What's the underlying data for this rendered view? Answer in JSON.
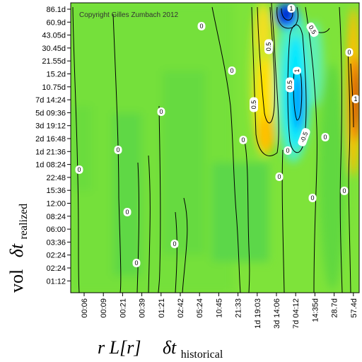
{
  "chart_data": {
    "type": "heatmap",
    "copyright": "Copyright Gilles Zumbach 2012",
    "xlabel": {
      "prefix": "r L[r]",
      "symbol": "δt",
      "subscript": "historical"
    },
    "ylabel": {
      "prefix": "vol",
      "symbol": "δt",
      "subscript": "realized"
    },
    "x_ticks": [
      "00:06",
      "00:09",
      "00:21",
      "00:39",
      "01:21",
      "02:42",
      "05:24",
      "10:45",
      "21:33",
      "1d 19:03",
      "3d 14:06",
      "7d 04:12",
      "14:35d",
      "28.7d",
      "57.4d"
    ],
    "y_ticks": [
      "86.1d",
      "60.9d",
      "43.05d",
      "30.45d",
      "21.55d",
      "15.2d",
      "10.75d",
      "7d 14:24",
      "5d 09:36",
      "3d 19:12",
      "2d 16:48",
      "1d 21:36",
      "1d 08:24",
      "22:48",
      "15:36",
      "12:00",
      "08:24",
      "06:00",
      "03:36",
      "02:24",
      "02:24",
      "01:12"
    ],
    "contour_labels": [
      "0",
      "0",
      "0",
      "0",
      "0",
      "0",
      "0",
      "0",
      "0",
      "0",
      "0",
      "0.5",
      "0.5",
      "0.5",
      "-0.5",
      "0.5",
      "1",
      "1",
      "1",
      "0",
      "0",
      "0",
      "0"
    ],
    "colorscale": [
      "#0000c8",
      "#00a0ff",
      "#00ffff",
      "#40ff80",
      "#9fe22a",
      "#ffe000",
      "#ff8000",
      "#d00000"
    ],
    "grid": false
  }
}
